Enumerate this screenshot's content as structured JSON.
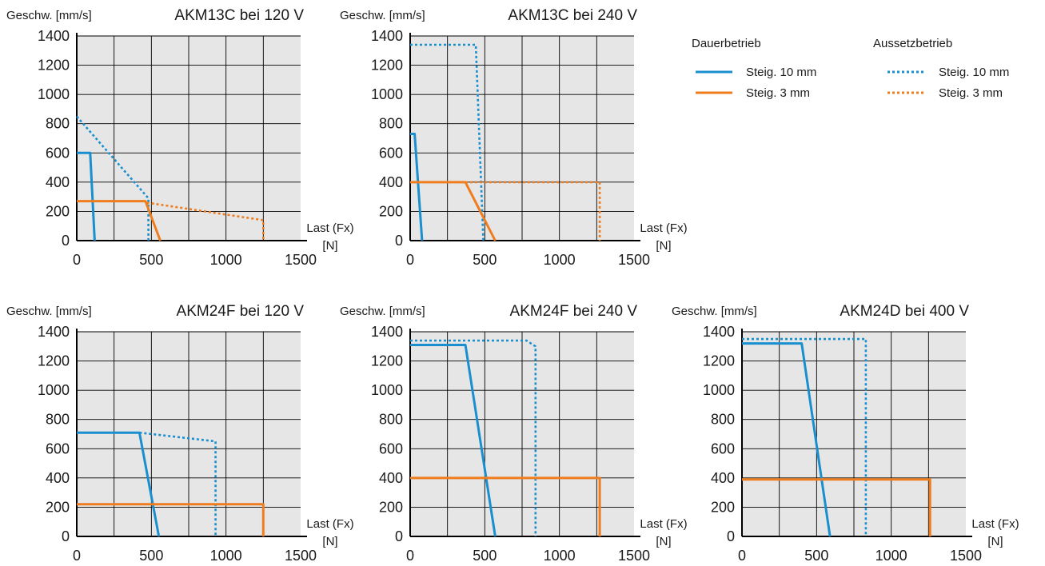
{
  "colors": {
    "blue": "#1a8fd0",
    "orange": "#ef7d1e",
    "plot_bg": "#e6e6e6",
    "grid": "#000000"
  },
  "legend": {
    "group_continuous": "Dauerbetrieb",
    "group_intermittent": "Aussetzbetrieb",
    "items": [
      {
        "label": "Steig. 10 mm",
        "color": "#1a8fd0",
        "dash": "solid"
      },
      {
        "label": "Steig. 3 mm",
        "color": "#ef7d1e",
        "dash": "solid"
      },
      {
        "label": "Steig. 10 mm",
        "color": "#1a8fd0",
        "dash": "dotted"
      },
      {
        "label": "Steig. 3 mm",
        "color": "#ef7d1e",
        "dash": "dotted"
      }
    ]
  },
  "chart_data": [
    {
      "type": "line",
      "title": "AKM13C bei 120 V",
      "ylabel": "Geschw. [mm/s]",
      "xlabel": [
        "Last (Fx)",
        "[N]"
      ],
      "xlim": [
        0,
        1500
      ],
      "ylim": [
        0,
        1400
      ],
      "xticks": [
        "0",
        "500",
        "1000",
        "1500"
      ],
      "yticks": [
        "0",
        "200",
        "400",
        "600",
        "800",
        "1000",
        "1200",
        "1400"
      ],
      "grid": true,
      "series": [
        {
          "color": "#1a8fd0",
          "dash": "dotted",
          "points": [
            [
              0,
              850
            ],
            [
              480,
              290
            ],
            [
              480,
              0
            ]
          ]
        },
        {
          "color": "#ef7d1e",
          "dash": "dotted",
          "points": [
            [
              470,
              260
            ],
            [
              1250,
              140
            ],
            [
              1250,
              0
            ]
          ]
        },
        {
          "color": "#1a8fd0",
          "dash": "solid",
          "points": [
            [
              0,
              600
            ],
            [
              90,
              600
            ],
            [
              120,
              0
            ]
          ]
        },
        {
          "color": "#ef7d1e",
          "dash": "solid",
          "points": [
            [
              0,
              270
            ],
            [
              460,
              270
            ],
            [
              560,
              0
            ]
          ]
        }
      ]
    },
    {
      "type": "line",
      "title": "AKM13C bei 240 V",
      "ylabel": "Geschw. [mm/s]",
      "xlabel": [
        "Last (Fx)",
        "[N]"
      ],
      "xlim": [
        0,
        1500
      ],
      "ylim": [
        0,
        1400
      ],
      "xticks": [
        "0",
        "500",
        "1000",
        "1500"
      ],
      "yticks": [
        "0",
        "200",
        "400",
        "600",
        "800",
        "1000",
        "1200",
        "1400"
      ],
      "grid": true,
      "series": [
        {
          "color": "#1a8fd0",
          "dash": "dotted",
          "points": [
            [
              0,
              1340
            ],
            [
              440,
              1340
            ],
            [
              490,
              0
            ]
          ]
        },
        {
          "color": "#ef7d1e",
          "dash": "dotted",
          "points": [
            [
              370,
              400
            ],
            [
              1270,
              400
            ],
            [
              1270,
              0
            ]
          ]
        },
        {
          "color": "#1a8fd0",
          "dash": "solid",
          "points": [
            [
              0,
              730
            ],
            [
              30,
              730
            ],
            [
              80,
              0
            ]
          ]
        },
        {
          "color": "#ef7d1e",
          "dash": "solid",
          "points": [
            [
              0,
              400
            ],
            [
              370,
              400
            ],
            [
              570,
              0
            ]
          ]
        }
      ]
    },
    {
      "type": "line",
      "title": "AKM24F bei 120 V",
      "ylabel": "Geschw. [mm/s]",
      "xlabel": [
        "Last (Fx)",
        "[N]"
      ],
      "xlim": [
        0,
        1500
      ],
      "ylim": [
        0,
        1400
      ],
      "xticks": [
        "0",
        "500",
        "1000",
        "1500"
      ],
      "yticks": [
        "0",
        "200",
        "400",
        "600",
        "800",
        "1000",
        "1200",
        "1400"
      ],
      "grid": true,
      "series": [
        {
          "color": "#1a8fd0",
          "dash": "dotted",
          "points": [
            [
              420,
              710
            ],
            [
              930,
              650
            ],
            [
              930,
              0
            ]
          ]
        },
        {
          "color": "#1a8fd0",
          "dash": "solid",
          "points": [
            [
              0,
              710
            ],
            [
              420,
              710
            ],
            [
              550,
              0
            ]
          ]
        },
        {
          "color": "#ef7d1e",
          "dash": "solid",
          "points": [
            [
              0,
              220
            ],
            [
              1250,
              220
            ],
            [
              1250,
              0
            ]
          ]
        }
      ]
    },
    {
      "type": "line",
      "title": "AKM24F bei 240 V",
      "ylabel": "Geschw. [mm/s]",
      "xlabel": [
        "Last (Fx)",
        "[N]"
      ],
      "xlim": [
        0,
        1500
      ],
      "ylim": [
        0,
        1400
      ],
      "xticks": [
        "0",
        "500",
        "1000",
        "1500"
      ],
      "yticks": [
        "0",
        "200",
        "400",
        "600",
        "800",
        "1000",
        "1200",
        "1400"
      ],
      "grid": true,
      "series": [
        {
          "color": "#1a8fd0",
          "dash": "dotted",
          "points": [
            [
              0,
              1340
            ],
            [
              780,
              1340
            ],
            [
              840,
              1300
            ],
            [
              840,
              0
            ]
          ]
        },
        {
          "color": "#1a8fd0",
          "dash": "solid",
          "points": [
            [
              0,
              1310
            ],
            [
              370,
              1310
            ],
            [
              570,
              0
            ]
          ]
        },
        {
          "color": "#ef7d1e",
          "dash": "solid",
          "points": [
            [
              0,
              400
            ],
            [
              1270,
              400
            ],
            [
              1270,
              0
            ]
          ]
        }
      ]
    },
    {
      "type": "line",
      "title": "AKM24D bei 400 V",
      "ylabel": "Geschw. [mm/s]",
      "xlabel": [
        "Last (Fx)",
        "[N]"
      ],
      "xlim": [
        0,
        1500
      ],
      "ylim": [
        0,
        1400
      ],
      "xticks": [
        "0",
        "500",
        "1000",
        "1500"
      ],
      "yticks": [
        "0",
        "200",
        "400",
        "600",
        "800",
        "1000",
        "1200",
        "1400"
      ],
      "grid": true,
      "series": [
        {
          "color": "#1a8fd0",
          "dash": "dotted",
          "points": [
            [
              0,
              1350
            ],
            [
              830,
              1350
            ],
            [
              830,
              0
            ]
          ]
        },
        {
          "color": "#1a8fd0",
          "dash": "solid",
          "points": [
            [
              0,
              1320
            ],
            [
              400,
              1320
            ],
            [
              590,
              0
            ]
          ]
        },
        {
          "color": "#ef7d1e",
          "dash": "solid",
          "points": [
            [
              0,
              390
            ],
            [
              1260,
              390
            ],
            [
              1260,
              0
            ]
          ]
        }
      ]
    }
  ]
}
